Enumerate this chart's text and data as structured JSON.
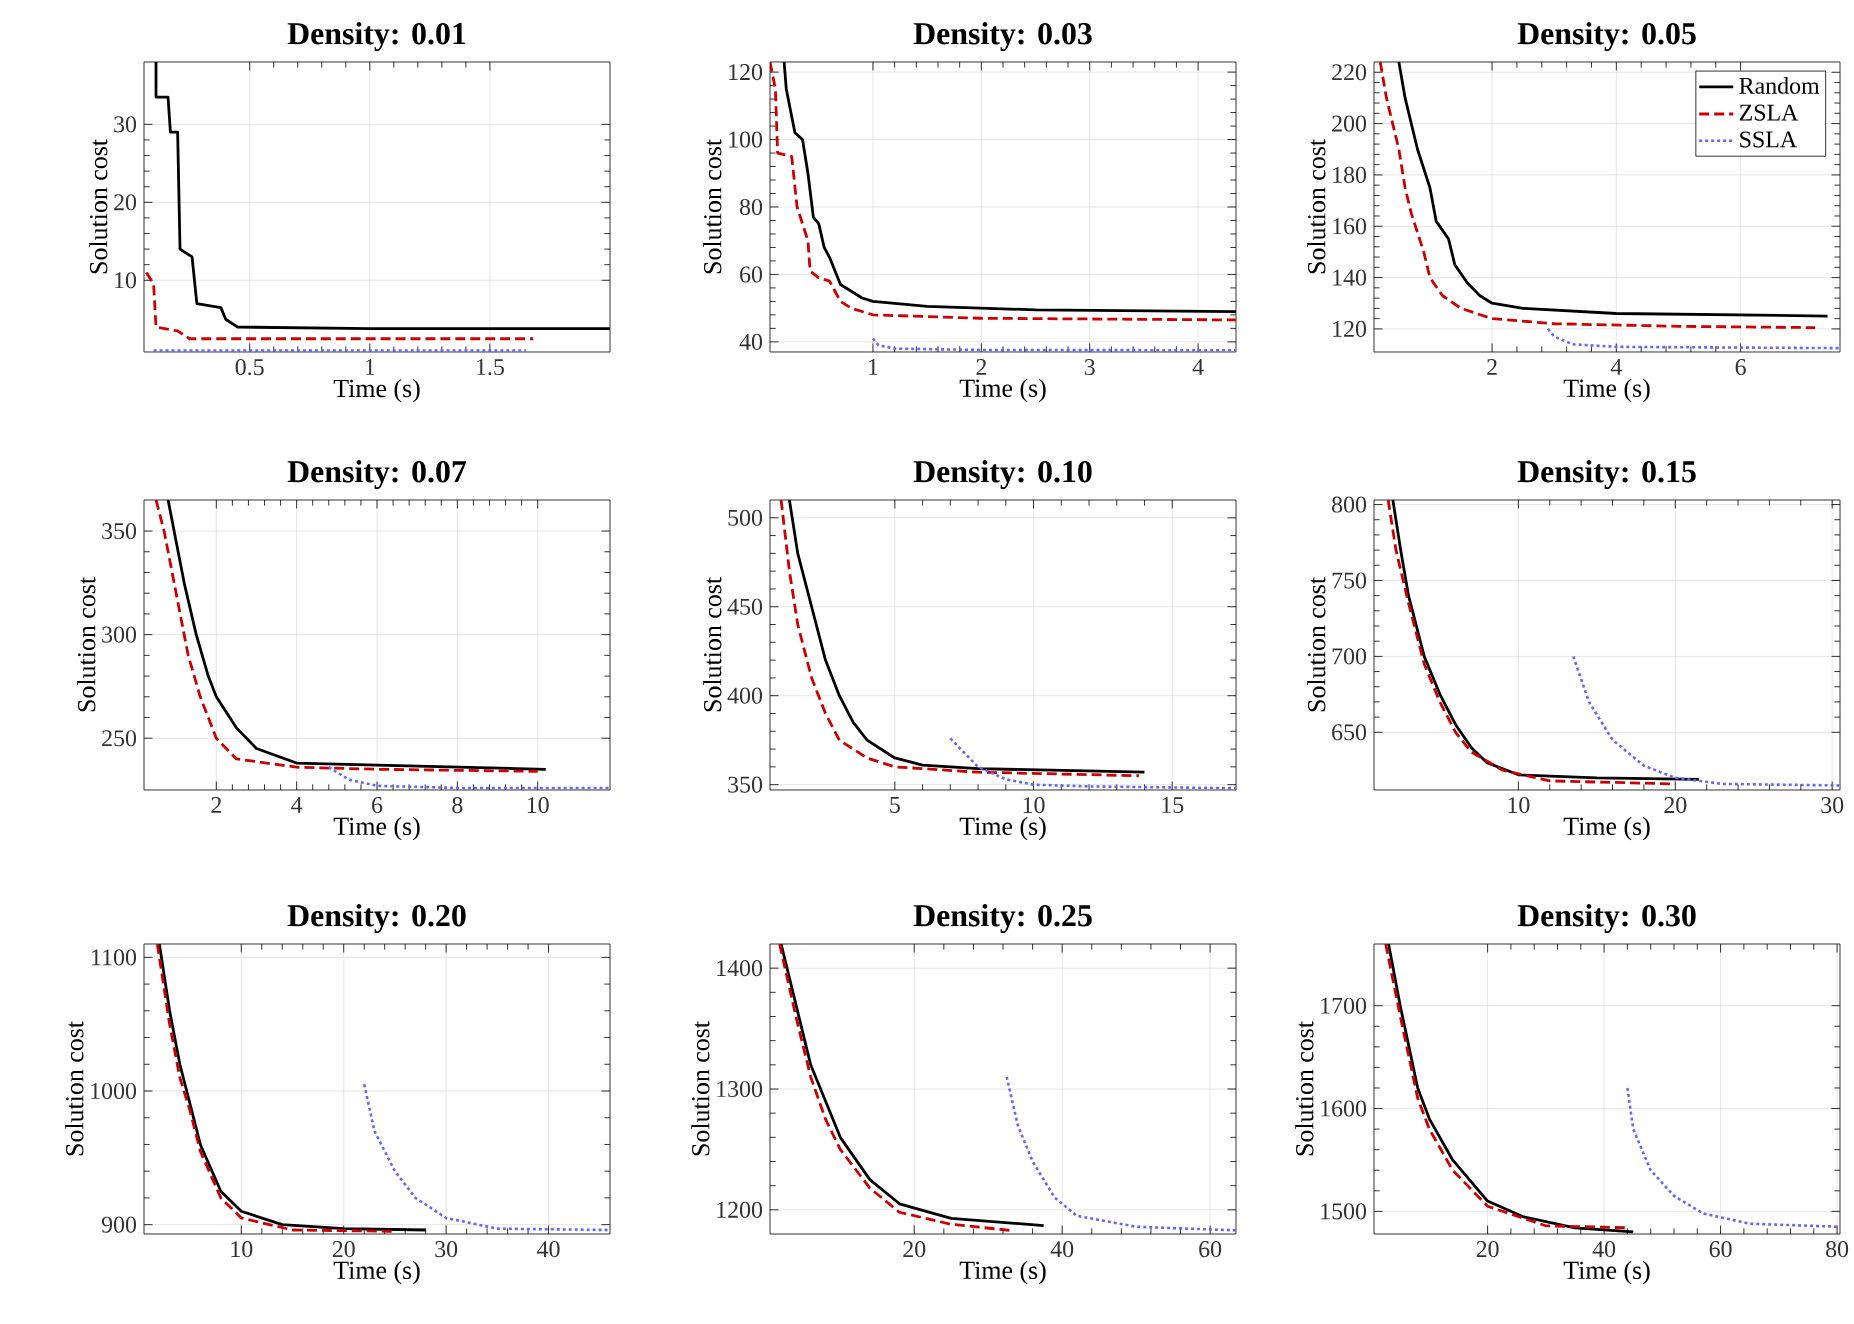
{
  "chart_data": [
    {
      "type": "line",
      "title": "Density: 0.01",
      "xlabel": "Time (s)",
      "ylabel": "Solution cost",
      "xlim": [
        0.06,
        2.0
      ],
      "ylim": [
        0.8,
        38
      ],
      "xticks": [
        0.5,
        1,
        1.5
      ],
      "yticks": [
        10,
        20,
        30
      ],
      "grid": true,
      "series": [
        {
          "color": "#000000",
          "line_style": "solid",
          "x": [
            0.11,
            0.11,
            0.16,
            0.17,
            0.2,
            0.21,
            0.26,
            0.28,
            0.38,
            0.4,
            0.45,
            1.0,
            2.0
          ],
          "values": [
            38,
            33.5,
            33.5,
            29,
            29,
            14,
            13,
            7,
            6.5,
            5,
            4,
            3.8,
            3.8
          ]
        },
        {
          "color": "#cc0000",
          "line_style": "dashed",
          "x": [
            0.07,
            0.1,
            0.11,
            0.2,
            0.25,
            1.0,
            1.68
          ],
          "values": [
            11,
            9.5,
            4,
            3.5,
            2.5,
            2.5,
            2.5
          ]
        },
        {
          "color": "#6666ff",
          "line_style": "dotted",
          "x": [
            0.1,
            0.5,
            1.0,
            1.65
          ],
          "values": [
            1,
            1,
            1,
            1
          ]
        }
      ]
    },
    {
      "type": "line",
      "title": "Density: 0.03",
      "xlabel": "Time (s)",
      "ylabel": "Solution cost",
      "xlim": [
        0.05,
        4.35
      ],
      "ylim": [
        37,
        123
      ],
      "xticks": [
        1,
        2,
        3,
        4
      ],
      "yticks": [
        40,
        60,
        80,
        100,
        120
      ],
      "grid": true,
      "series": [
        {
          "color": "#000000",
          "line_style": "solid",
          "x": [
            0.18,
            0.2,
            0.28,
            0.35,
            0.4,
            0.45,
            0.5,
            0.55,
            0.6,
            0.7,
            0.8,
            0.9,
            1.0,
            1.5,
            2.5,
            4.35
          ],
          "values": [
            123,
            115,
            102,
            100,
            90,
            77,
            75,
            68,
            65,
            57,
            55,
            53,
            52,
            50.5,
            49.5,
            49
          ]
        },
        {
          "color": "#cc0000",
          "line_style": "dashed",
          "x": [
            0.05,
            0.1,
            0.12,
            0.25,
            0.3,
            0.4,
            0.42,
            0.5,
            0.6,
            0.7,
            0.8,
            1.0,
            2.0,
            4.35
          ],
          "values": [
            123,
            115,
            96,
            95,
            80,
            70,
            61,
            59,
            58,
            52,
            50,
            48,
            47,
            46.5
          ]
        },
        {
          "color": "#6666ff",
          "line_style": "dotted",
          "x": [
            1.0,
            1.05,
            1.2,
            2.0,
            4.35
          ],
          "values": [
            41,
            39,
            38,
            37.6,
            37.5
          ]
        }
      ]
    },
    {
      "type": "line",
      "title": "Density: 0.05",
      "xlabel": "Time (s)",
      "ylabel": "Solution cost",
      "xlim": [
        0.1,
        7.6
      ],
      "ylim": [
        111,
        224
      ],
      "xticks": [
        2,
        4,
        6
      ],
      "yticks": [
        120,
        140,
        160,
        180,
        200,
        220
      ],
      "grid": true,
      "legend": "top right",
      "series": [
        {
          "name": "Random",
          "color": "#000000",
          "line_style": "solid",
          "x": [
            0.5,
            0.6,
            0.8,
            1.0,
            1.1,
            1.3,
            1.4,
            1.6,
            1.8,
            2.0,
            2.5,
            4.0,
            7.4
          ],
          "values": [
            224,
            210,
            190,
            175,
            162,
            155,
            145,
            138,
            133,
            130,
            128,
            126,
            125
          ]
        },
        {
          "name": "ZSLA",
          "color": "#cc0000",
          "line_style": "dashed",
          "x": [
            0.2,
            0.3,
            0.4,
            0.5,
            0.6,
            0.7,
            0.9,
            1.0,
            1.2,
            1.5,
            2.0,
            3.0,
            5.0,
            7.2
          ],
          "values": [
            224,
            210,
            200,
            190,
            175,
            165,
            150,
            140,
            133,
            128,
            124,
            122,
            121,
            120.5
          ]
        },
        {
          "name": "SSLA",
          "color": "#6666ff",
          "line_style": "dotted",
          "x": [
            2.9,
            3.0,
            3.3,
            4.0,
            7.6
          ],
          "values": [
            120,
            117,
            114,
            113,
            112.5
          ]
        }
      ]
    },
    {
      "type": "line",
      "title": "Density: 0.07",
      "xlabel": "Time (s)",
      "ylabel": "Solution cost",
      "xlim": [
        0.2,
        11.8
      ],
      "ylim": [
        225,
        365
      ],
      "xticks": [
        2,
        4,
        6,
        8,
        10
      ],
      "yticks": [
        250,
        300,
        350
      ],
      "grid": true,
      "series": [
        {
          "color": "#000000",
          "line_style": "solid",
          "x": [
            0.8,
            1.0,
            1.2,
            1.5,
            1.8,
            2.0,
            2.5,
            3.0,
            4.0,
            6.0,
            10.2
          ],
          "values": [
            365,
            345,
            325,
            300,
            280,
            270,
            255,
            245,
            238,
            237,
            235
          ]
        },
        {
          "color": "#cc0000",
          "line_style": "dashed",
          "x": [
            0.5,
            0.7,
            1.0,
            1.3,
            1.6,
            2.0,
            2.5,
            4.0,
            6.0,
            10.0
          ],
          "values": [
            365,
            350,
            320,
            290,
            270,
            250,
            240,
            236,
            235,
            234
          ]
        },
        {
          "color": "#6666ff",
          "line_style": "dotted",
          "x": [
            4.8,
            5.3,
            6.0,
            8.0,
            11.8
          ],
          "values": [
            236,
            230,
            227,
            226,
            226
          ]
        }
      ]
    },
    {
      "type": "line",
      "title": "Density: 0.10",
      "xlabel": "Time (s)",
      "ylabel": "Solution cost",
      "xlim": [
        0.5,
        17.3
      ],
      "ylim": [
        347,
        510
      ],
      "xticks": [
        5,
        10,
        15
      ],
      "yticks": [
        350,
        400,
        450,
        500
      ],
      "grid": true,
      "series": [
        {
          "color": "#000000",
          "line_style": "solid",
          "x": [
            1.2,
            1.5,
            2.0,
            2.5,
            3.0,
            3.5,
            4.0,
            5.0,
            6.0,
            8.0,
            14.0
          ],
          "values": [
            510,
            480,
            450,
            420,
            400,
            385,
            375,
            365,
            361,
            359,
            357
          ]
        },
        {
          "color": "#cc0000",
          "line_style": "dashed",
          "x": [
            0.9,
            1.2,
            1.5,
            2.0,
            2.5,
            3.0,
            4.0,
            5.0,
            8.0,
            13.8
          ],
          "values": [
            510,
            470,
            440,
            410,
            390,
            375,
            365,
            360,
            357,
            355
          ]
        },
        {
          "color": "#6666ff",
          "line_style": "dotted",
          "x": [
            7.0,
            7.5,
            8.0,
            9.0,
            10.0,
            12.0,
            17.3
          ],
          "values": [
            376,
            368,
            360,
            353,
            350,
            349,
            348
          ]
        }
      ]
    },
    {
      "type": "line",
      "title": "Density: 0.15",
      "xlabel": "Time (s)",
      "ylabel": "Solution cost",
      "xlim": [
        0.8,
        30.5
      ],
      "ylim": [
        612,
        803
      ],
      "xticks": [
        10,
        20,
        30
      ],
      "yticks": [
        650,
        700,
        750,
        800
      ],
      "grid": true,
      "series": [
        {
          "color": "#000000",
          "line_style": "solid",
          "x": [
            2,
            2.5,
            3,
            4,
            5,
            6,
            7,
            8,
            10,
            15,
            21.5
          ],
          "values": [
            803,
            770,
            740,
            700,
            675,
            655,
            640,
            630,
            622,
            620,
            619
          ]
        },
        {
          "color": "#cc0000",
          "line_style": "dashed",
          "x": [
            1.7,
            2.2,
            3,
            4,
            5,
            6,
            7,
            9,
            12,
            20
          ],
          "values": [
            803,
            770,
            735,
            695,
            670,
            650,
            637,
            625,
            618,
            616
          ]
        },
        {
          "color": "#6666ff",
          "line_style": "dotted",
          "x": [
            13.5,
            14.5,
            16,
            18,
            20,
            23,
            30.5
          ],
          "values": [
            700,
            670,
            645,
            628,
            620,
            616,
            615
          ]
        }
      ]
    },
    {
      "type": "line",
      "title": "Density: 0.20",
      "xlabel": "Time (s)",
      "ylabel": "Solution cost",
      "xlim": [
        0.5,
        46
      ],
      "ylim": [
        893,
        1110
      ],
      "xticks": [
        10,
        20,
        30,
        40
      ],
      "yticks": [
        900,
        1000,
        1100
      ],
      "grid": true,
      "series": [
        {
          "color": "#000000",
          "line_style": "solid",
          "x": [
            2,
            3,
            4,
            5,
            6,
            8,
            10,
            14,
            20,
            28
          ],
          "values": [
            1110,
            1060,
            1020,
            990,
            960,
            925,
            910,
            900,
            897,
            896
          ]
        },
        {
          "color": "#cc0000",
          "line_style": "dashed",
          "x": [
            1.8,
            3,
            4,
            5,
            6,
            8,
            10,
            15,
            25
          ],
          "values": [
            1110,
            1050,
            1010,
            985,
            955,
            920,
            905,
            896,
            895
          ]
        },
        {
          "color": "#6666ff",
          "line_style": "dotted",
          "x": [
            22,
            23,
            25,
            27,
            30,
            35,
            46
          ],
          "values": [
            1005,
            970,
            940,
            920,
            905,
            897,
            896
          ]
        }
      ]
    },
    {
      "type": "line",
      "title": "Density: 0.25",
      "xlabel": "Time (s)",
      "ylabel": "Solution cost",
      "xlim": [
        0.5,
        63.5
      ],
      "ylim": [
        1180,
        1420
      ],
      "xticks": [
        20,
        40,
        60
      ],
      "yticks": [
        1200,
        1300,
        1400
      ],
      "grid": true,
      "series": [
        {
          "color": "#000000",
          "line_style": "solid",
          "x": [
            2,
            4,
            6,
            8,
            10,
            14,
            18,
            25,
            37.5
          ],
          "values": [
            1420,
            1370,
            1320,
            1290,
            1260,
            1225,
            1205,
            1193,
            1187
          ]
        },
        {
          "color": "#cc0000",
          "line_style": "dashed",
          "x": [
            1.8,
            4,
            6,
            8,
            10,
            14,
            18,
            25,
            33
          ],
          "values": [
            1420,
            1360,
            1310,
            1275,
            1250,
            1218,
            1198,
            1188,
            1183
          ]
        },
        {
          "color": "#6666ff",
          "line_style": "dotted",
          "x": [
            32.5,
            34,
            36,
            39,
            42,
            50,
            63.5
          ],
          "values": [
            1310,
            1270,
            1240,
            1210,
            1195,
            1186,
            1183
          ]
        }
      ]
    },
    {
      "type": "line",
      "title": "Density: 0.30",
      "xlabel": "Time (s)",
      "ylabel": "Solution cost",
      "xlim": [
        0.5,
        80.5
      ],
      "ylim": [
        1478,
        1760
      ],
      "xticks": [
        20,
        40,
        60,
        80
      ],
      "yticks": [
        1500,
        1600,
        1700
      ],
      "grid": true,
      "series": [
        {
          "color": "#000000",
          "line_style": "solid",
          "x": [
            3,
            5,
            8,
            10,
            14,
            20,
            26,
            35,
            45
          ],
          "values": [
            1760,
            1700,
            1620,
            1590,
            1550,
            1510,
            1495,
            1484,
            1480
          ]
        },
        {
          "color": "#cc0000",
          "line_style": "dashed",
          "x": [
            2.5,
            5,
            8,
            10,
            14,
            20,
            30,
            44
          ],
          "values": [
            1760,
            1690,
            1610,
            1580,
            1540,
            1505,
            1486,
            1484
          ]
        },
        {
          "color": "#6666ff",
          "line_style": "dotted",
          "x": [
            44,
            45,
            48,
            52,
            57,
            65,
            80.5
          ],
          "values": [
            1620,
            1580,
            1540,
            1515,
            1498,
            1488,
            1485
          ]
        }
      ]
    }
  ]
}
